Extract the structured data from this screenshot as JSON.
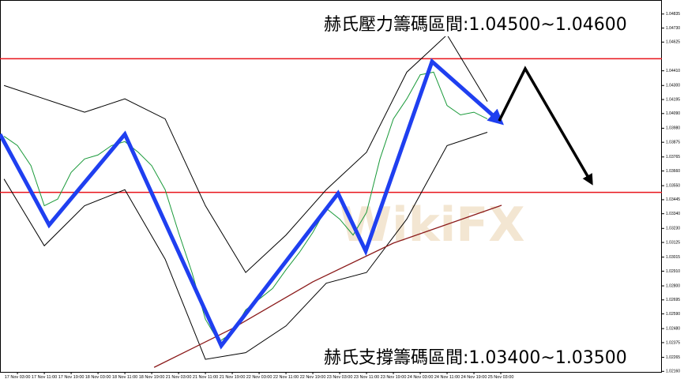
{
  "chart_data": {
    "type": "line",
    "annotation_top": "赫氏壓力籌碼區間:1.04500~1.04600",
    "annotation_bottom": "赫氏支撐籌碼區間:1.03400~1.03500",
    "watermark": "WikiFX",
    "categories": [
      "17 Nov 03:00",
      "17 Nov 11:00",
      "17 Nov 19:00",
      "18 Nov 03:00",
      "18 Nov 11:00",
      "18 Nov 19:00",
      "21 Nov 03:00",
      "21 Nov 11:00",
      "21 Nov 19:00",
      "22 Nov 03:00",
      "22 Nov 11:00",
      "22 Nov 19:00",
      "23 Nov 03:00",
      "23 Nov 11:00",
      "23 Nov 19:00",
      "24 Nov 03:00",
      "24 Nov 11:00",
      "24 Nov 19:00",
      "25 Nov 03:00"
    ],
    "xlim": [
      -0.65,
      24
    ],
    "ylim": [
      1.0215,
      1.0494
    ],
    "yticks": [
      {
        "value": 1.0216,
        "label": "1.02160"
      },
      1.02265,
      1.02375,
      {
        "value": 1.0248,
        "label": "1.02480"
      },
      {
        "value": 1.0259,
        "label": "1.02590"
      },
      1.02695,
      {
        "value": 1.028,
        "label": "1.02800"
      },
      {
        "value": 1.0291,
        "label": "1.02910"
      },
      1.03015,
      1.03125,
      {
        "value": 1.0323,
        "label": "1.03230"
      },
      {
        "value": 1.0334,
        "label": "1.03340"
      },
      1.03445,
      {
        "value": 1.0355,
        "label": "1.03550"
      },
      {
        "value": 1.0366,
        "label": "1.03660"
      },
      1.03765,
      1.03875,
      {
        "value": 1.0398,
        "label": "1.03980"
      },
      {
        "value": 1.0409,
        "label": "1.04090"
      },
      1.04195,
      {
        "value": 1.043,
        "label": "1.04300"
      },
      {
        "value": 1.0441,
        "label": "1.04410"
      },
      1.04625,
      {
        "value": 1.0473,
        "label": "1.04730"
      },
      1.04835
    ],
    "levels": [
      1.045,
      1.035
    ],
    "level_color": "#e8141b",
    "series": [
      {
        "color": "#1a9a3a",
        "x": [
          -0.5,
          0,
          0.5,
          1,
          1.5,
          2,
          2.5,
          3,
          3.5,
          4,
          4.5,
          5,
          5.5,
          6,
          6.5,
          7,
          7.5,
          8,
          8.5,
          9,
          9.5,
          10,
          10.5,
          11,
          11.5,
          12,
          12.5,
          13,
          13.5,
          14,
          14.5,
          15,
          15.5,
          16,
          16.5,
          17,
          17.5
        ],
        "values": [
          1.0392,
          1.0385,
          1.037,
          1.034,
          1.0345,
          1.0365,
          1.0375,
          1.0378,
          1.0385,
          1.0388,
          1.038,
          1.037,
          1.0352,
          1.032,
          1.029,
          1.0255,
          1.0238,
          1.0245,
          1.0262,
          1.027,
          1.0278,
          1.0292,
          1.0305,
          1.032,
          1.0338,
          1.033,
          1.0318,
          1.0335,
          1.0375,
          1.0405,
          1.042,
          1.0438,
          1.044,
          1.0415,
          1.0408,
          1.041,
          1.0405
        ]
      },
      {
        "color": "#000000",
        "x": [
          -0.5,
          1,
          2.5,
          4,
          5.5,
          7,
          8.5,
          10,
          11.5,
          13,
          14.5,
          16,
          17.5
        ],
        "values": [
          1.043,
          1.042,
          1.041,
          1.042,
          1.0405,
          1.034,
          1.029,
          1.0318,
          1.0352,
          1.038,
          1.044,
          1.0468,
          1.0418
        ]
      },
      {
        "color": "#000000",
        "x": [
          -0.5,
          1,
          2.5,
          4,
          5.5,
          7,
          8.5,
          10,
          11.5,
          13,
          14.5,
          16,
          17.5
        ],
        "values": [
          1.036,
          1.031,
          1.034,
          1.0352,
          1.03,
          1.0225,
          1.023,
          1.025,
          1.0282,
          1.029,
          1.033,
          1.0385,
          1.0395
        ]
      },
      {
        "color": "#8b1a1a",
        "x": [
          5.09,
          8,
          11,
          14,
          18.03
        ],
        "values": [
          1.0219,
          1.0248,
          1.0283,
          1.0312,
          1.03403
        ]
      },
      {
        "color": "#1f3ff0",
        "x": [
          -0.65,
          1.18,
          4.0,
          7.59,
          11.94,
          12.97,
          15.44,
          17.94
        ],
        "values": [
          1.03935,
          1.03256,
          1.03935,
          1.02352,
          1.03492,
          1.03061,
          1.04479,
          1.04035
        ]
      },
      {
        "color": "#000000",
        "x": [
          17.94,
          18.91,
          21.35
        ],
        "values": [
          1.04035,
          1.04426,
          1.03581
        ]
      }
    ]
  }
}
